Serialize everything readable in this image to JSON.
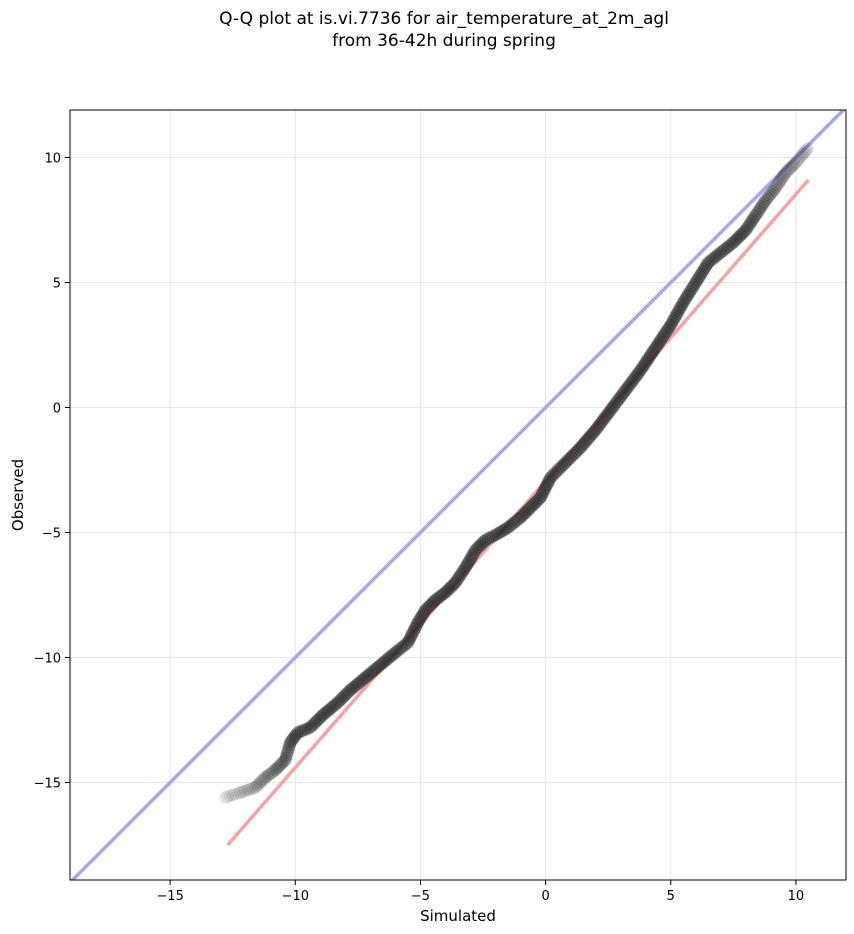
{
  "chart_data": {
    "type": "scatter",
    "title_line1": "Q-Q plot at is.vi.7736 for air_temperature_at_2m_agl",
    "title_line2": "from 36-42h during spring",
    "xlabel": "Simulated",
    "ylabel": "Observed",
    "xlim": [
      -19.0,
      12.0
    ],
    "ylim": [
      -18.9,
      11.9
    ],
    "xticks": [
      -15,
      -10,
      -5,
      0,
      5,
      10
    ],
    "yticks": [
      -15,
      -10,
      -5,
      0,
      5,
      10
    ],
    "xtick_labels": [
      "−15",
      "−10",
      "−5",
      "0",
      "5",
      "10"
    ],
    "ytick_labels": [
      "−15",
      "−10",
      "−5",
      "0",
      "5",
      "10"
    ],
    "grid": true,
    "identity_line": {
      "color": "#a7a7f3",
      "x": [
        -19.0,
        12.0
      ],
      "y": [
        -19.0,
        12.0
      ]
    },
    "fit_line": {
      "color": "#f6a3a3",
      "x": [
        -12.7,
        10.5
      ],
      "y": [
        -17.5,
        9.1
      ]
    },
    "quantile_curve": {
      "color": "#222222",
      "x": [
        -12.8,
        -12.2,
        -11.6,
        -11.2,
        -10.8,
        -10.4,
        -10.2,
        -9.9,
        -9.4,
        -8.9,
        -8.3,
        -7.8,
        -7.2,
        -6.6,
        -6.0,
        -5.5,
        -5.1,
        -4.8,
        -4.4,
        -4.0,
        -3.6,
        -3.2,
        -2.8,
        -2.4,
        -2.0,
        -1.5,
        -1.0,
        -0.6,
        -0.2,
        0.2,
        0.8,
        1.4,
        2.0,
        2.6,
        3.2,
        3.8,
        4.4,
        5.0,
        5.5,
        6.0,
        6.5,
        7.0,
        7.5,
        8.0,
        8.4,
        8.8,
        9.2,
        9.6,
        10.0,
        10.5
      ],
      "y": [
        -15.6,
        -15.4,
        -15.2,
        -14.8,
        -14.5,
        -14.1,
        -13.4,
        -13.0,
        -12.8,
        -12.3,
        -11.8,
        -11.3,
        -10.8,
        -10.3,
        -9.8,
        -9.4,
        -8.6,
        -8.1,
        -7.7,
        -7.4,
        -7.0,
        -6.4,
        -5.7,
        -5.3,
        -5.1,
        -4.8,
        -4.4,
        -4.0,
        -3.6,
        -2.8,
        -2.2,
        -1.6,
        -0.9,
        -0.1,
        0.7,
        1.5,
        2.4,
        3.3,
        4.2,
        5.0,
        5.8,
        6.2,
        6.6,
        7.1,
        7.7,
        8.3,
        8.8,
        9.4,
        9.8,
        10.4
      ]
    }
  }
}
